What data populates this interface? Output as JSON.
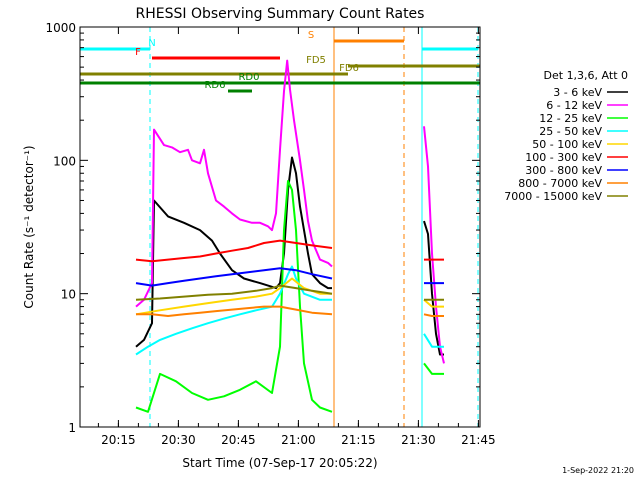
{
  "chart_data": {
    "type": "line",
    "title": "RHESSI Observing Summary Count Rates",
    "xlabel": "Start Time (07-Sep-17 20:05:22)",
    "ylabel": "Count Rate (s⁻¹ detector⁻¹)",
    "x_unit": "minutes after 20:05:22",
    "xlim": [
      0,
      100
    ],
    "ylim": [
      1,
      1000
    ],
    "yscale": "log",
    "x_ticks": [
      {
        "t": 9.6,
        "label": "20:15"
      },
      {
        "t": 24.6,
        "label": "20:30"
      },
      {
        "t": 39.6,
        "label": "20:45"
      },
      {
        "t": 54.6,
        "label": "21:00"
      },
      {
        "t": 69.6,
        "label": "21:15"
      },
      {
        "t": 84.6,
        "label": "21:30"
      },
      {
        "t": 99.6,
        "label": "21:45"
      }
    ],
    "y_ticks": [
      {
        "v": 1,
        "label": "1"
      },
      {
        "v": 10,
        "label": "10"
      },
      {
        "v": 100,
        "label": "100"
      },
      {
        "v": 1000,
        "label": "1000"
      }
    ],
    "legend_title": "Det 1,3,6, Att 0",
    "legend_position": "right",
    "series": [
      {
        "name": "3 - 6 keV",
        "color": "#000000",
        "points": [
          [
            14,
            4
          ],
          [
            16,
            4.5
          ],
          [
            18,
            6
          ],
          [
            18.5,
            50
          ],
          [
            22,
            38
          ],
          [
            26,
            34
          ],
          [
            30,
            30
          ],
          [
            33,
            25
          ],
          [
            35,
            20
          ],
          [
            38,
            15
          ],
          [
            41,
            13
          ],
          [
            45,
            12
          ],
          [
            49,
            11
          ],
          [
            50,
            12
          ],
          [
            51,
            20
          ],
          [
            52,
            60
          ],
          [
            53,
            105
          ],
          [
            54,
            80
          ],
          [
            55,
            45
          ],
          [
            56,
            30
          ],
          [
            57,
            20
          ],
          [
            58,
            14
          ],
          [
            60,
            12
          ],
          [
            62,
            11
          ],
          [
            63,
            11
          ],
          [
            63.5,
            null
          ],
          [
            85.5,
            null
          ],
          [
            86,
            35
          ],
          [
            87,
            28
          ],
          [
            88,
            10
          ],
          [
            89,
            5
          ],
          [
            90,
            3.5
          ],
          [
            91,
            3.5
          ]
        ]
      },
      {
        "name": "6 - 12 keV",
        "color": "#ff00ff",
        "points": [
          [
            14,
            8
          ],
          [
            16,
            9
          ],
          [
            18,
            12
          ],
          [
            18.5,
            170
          ],
          [
            21,
            130
          ],
          [
            23,
            125
          ],
          [
            25,
            115
          ],
          [
            27,
            120
          ],
          [
            28,
            100
          ],
          [
            30,
            95
          ],
          [
            31,
            120
          ],
          [
            32,
            80
          ],
          [
            34,
            50
          ],
          [
            36,
            45
          ],
          [
            38,
            40
          ],
          [
            40,
            36
          ],
          [
            43,
            34
          ],
          [
            45,
            34
          ],
          [
            47,
            32
          ],
          [
            48,
            30
          ],
          [
            49,
            40
          ],
          [
            50,
            120
          ],
          [
            51,
            330
          ],
          [
            51.8,
            560
          ],
          [
            52.5,
            340
          ],
          [
            53.5,
            200
          ],
          [
            55,
            100
          ],
          [
            56,
            60
          ],
          [
            57,
            35
          ],
          [
            58,
            25
          ],
          [
            60,
            18
          ],
          [
            62,
            17
          ],
          [
            63,
            16
          ],
          [
            63.5,
            null
          ],
          [
            85.5,
            null
          ],
          [
            86,
            180
          ],
          [
            87,
            90
          ],
          [
            88,
            20
          ],
          [
            89,
            8
          ],
          [
            90,
            4
          ],
          [
            91,
            3
          ]
        ]
      },
      {
        "name": "12 - 25 keV",
        "color": "#00ff00",
        "points": [
          [
            14,
            1.4
          ],
          [
            17,
            1.3
          ],
          [
            20,
            2.5
          ],
          [
            24,
            2.2
          ],
          [
            28,
            1.8
          ],
          [
            32,
            1.6
          ],
          [
            36,
            1.7
          ],
          [
            40,
            1.9
          ],
          [
            44,
            2.2
          ],
          [
            48,
            1.8
          ],
          [
            50,
            4
          ],
          [
            51,
            30
          ],
          [
            52,
            70
          ],
          [
            53,
            60
          ],
          [
            54,
            30
          ],
          [
            55,
            8
          ],
          [
            56,
            3
          ],
          [
            58,
            1.6
          ],
          [
            60,
            1.4
          ],
          [
            63,
            1.3
          ],
          [
            63.5,
            null
          ],
          [
            85.5,
            null
          ],
          [
            86,
            3
          ],
          [
            88,
            2.5
          ],
          [
            91,
            2.5
          ]
        ]
      },
      {
        "name": "25 - 50 keV",
        "color": "#00ffff",
        "points": [
          [
            14,
            3.5
          ],
          [
            17,
            4
          ],
          [
            20,
            4.5
          ],
          [
            24,
            5
          ],
          [
            28,
            5.5
          ],
          [
            32,
            6
          ],
          [
            36,
            6.5
          ],
          [
            40,
            7
          ],
          [
            44,
            7.5
          ],
          [
            48,
            8
          ],
          [
            50,
            10
          ],
          [
            52,
            14
          ],
          [
            53,
            16
          ],
          [
            54,
            13
          ],
          [
            56,
            10
          ],
          [
            60,
            9
          ],
          [
            63,
            9
          ],
          [
            63.5,
            null
          ],
          [
            85.5,
            null
          ],
          [
            86,
            5
          ],
          [
            88,
            4
          ],
          [
            91,
            4
          ]
        ]
      },
      {
        "name": "50 - 100 keV",
        "color": "#ffd700",
        "points": [
          [
            14,
            7
          ],
          [
            20,
            7.5
          ],
          [
            26,
            8
          ],
          [
            32,
            8.5
          ],
          [
            38,
            9
          ],
          [
            44,
            9.5
          ],
          [
            48,
            10
          ],
          [
            50,
            11
          ],
          [
            53,
            13
          ],
          [
            56,
            11
          ],
          [
            60,
            10
          ],
          [
            63,
            10
          ],
          [
            63.5,
            null
          ],
          [
            85.5,
            null
          ],
          [
            86,
            9
          ],
          [
            88,
            8
          ],
          [
            91,
            8
          ]
        ]
      },
      {
        "name": "100 - 300 keV",
        "color": "#ff0000",
        "points": [
          [
            14,
            18
          ],
          [
            18,
            17.5
          ],
          [
            22,
            18
          ],
          [
            26,
            18.5
          ],
          [
            30,
            19
          ],
          [
            34,
            20
          ],
          [
            38,
            21
          ],
          [
            42,
            22
          ],
          [
            46,
            24
          ],
          [
            50,
            25
          ],
          [
            54,
            24
          ],
          [
            58,
            23
          ],
          [
            63,
            22
          ],
          [
            63.5,
            null
          ],
          [
            85.5,
            null
          ],
          [
            86,
            18
          ],
          [
            88,
            18
          ],
          [
            91,
            18
          ]
        ]
      },
      {
        "name": "300 - 800 keV",
        "color": "#0000ff",
        "points": [
          [
            14,
            12
          ],
          [
            18,
            11.5
          ],
          [
            22,
            12
          ],
          [
            26,
            12.5
          ],
          [
            30,
            13
          ],
          [
            34,
            13.5
          ],
          [
            38,
            14
          ],
          [
            42,
            14.5
          ],
          [
            46,
            15
          ],
          [
            50,
            15.5
          ],
          [
            54,
            15
          ],
          [
            58,
            14
          ],
          [
            63,
            13
          ],
          [
            63.5,
            null
          ],
          [
            85.5,
            null
          ],
          [
            86,
            12
          ],
          [
            88,
            12
          ],
          [
            91,
            12
          ]
        ]
      },
      {
        "name": "800 - 7000 keV",
        "color": "#ff8000",
        "points": [
          [
            14,
            7
          ],
          [
            18,
            7
          ],
          [
            22,
            6.8
          ],
          [
            26,
            7
          ],
          [
            30,
            7.2
          ],
          [
            34,
            7.4
          ],
          [
            38,
            7.6
          ],
          [
            42,
            7.8
          ],
          [
            46,
            8
          ],
          [
            50,
            8
          ],
          [
            54,
            7.6
          ],
          [
            58,
            7.2
          ],
          [
            63,
            7
          ],
          [
            63.5,
            null
          ],
          [
            85.5,
            null
          ],
          [
            86,
            7
          ],
          [
            88,
            6.8
          ],
          [
            91,
            6.8
          ]
        ]
      },
      {
        "name": "7000 - 15000 keV",
        "color": "#808000",
        "points": [
          [
            14,
            9
          ],
          [
            20,
            9.2
          ],
          [
            26,
            9.5
          ],
          [
            32,
            9.8
          ],
          [
            38,
            10
          ],
          [
            44,
            10.5
          ],
          [
            48,
            11
          ],
          [
            50,
            11.5
          ],
          [
            54,
            11
          ],
          [
            58,
            10.5
          ],
          [
            63,
            10
          ],
          [
            63.5,
            null
          ],
          [
            85.5,
            null
          ],
          [
            86,
            9
          ],
          [
            88,
            9
          ],
          [
            91,
            9
          ]
        ]
      }
    ],
    "flags": [
      {
        "label": "N",
        "color": "#00ffff",
        "segments": [
          [
            0,
            17.5
          ],
          [
            85.5,
            99.5
          ]
        ]
      },
      {
        "label": "S",
        "color": "#ff8000",
        "segments": [
          [
            63.5,
            81
          ]
        ]
      },
      {
        "label": "F",
        "color": "#ff0000",
        "segments": [
          [
            18,
            50
          ]
        ]
      },
      {
        "label": "FD5",
        "color": "#808000",
        "segments": [
          [
            67,
            100
          ]
        ]
      },
      {
        "label": "FD6",
        "color": "#808000",
        "segments": [
          [
            0,
            67
          ]
        ]
      },
      {
        "label": "RD0",
        "color": "#008000",
        "segments": [
          [
            0,
            100
          ]
        ]
      },
      {
        "label": "RD6",
        "color": "#008000",
        "segments": [
          [
            37,
            43
          ]
        ]
      }
    ],
    "vertical_markers": [
      {
        "t": 17.5,
        "color": "#00ffff",
        "style": "dashed"
      },
      {
        "t": 63.5,
        "color": "#ff8000",
        "style": "solid"
      },
      {
        "t": 81,
        "color": "#ff8000",
        "style": "dashed"
      },
      {
        "t": 85.5,
        "color": "#00ffff",
        "style": "solid"
      },
      {
        "t": 99.5,
        "color": "#00ffff",
        "style": "dashed"
      }
    ],
    "plot_stamp": "1-Sep-2022 21:20"
  }
}
